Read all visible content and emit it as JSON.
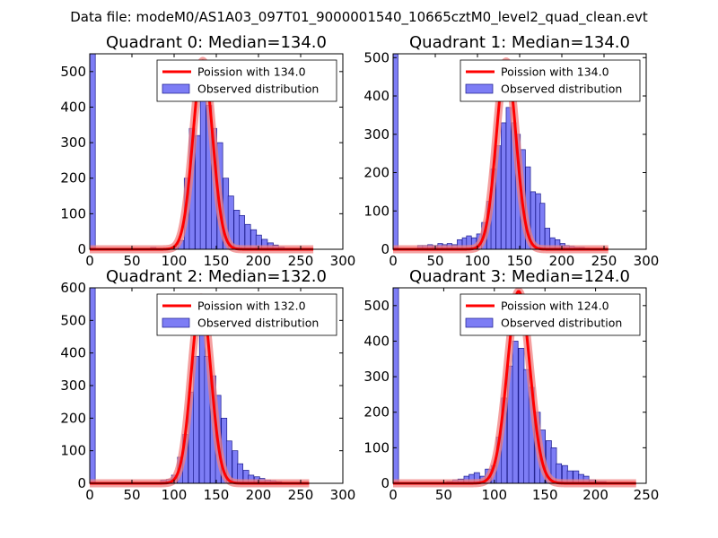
{
  "figure": {
    "suptitle": "Data file: modeM0/AS1A03_097T01_9000001540_10665cztM0_level2_quad_clean.evt",
    "colors": {
      "hist_fill": "#7d7df5",
      "hist_edge": "#1a1a8c",
      "poisson_line": "#ff0000",
      "poisson_glow": "#f08080"
    }
  },
  "chart_data": [
    {
      "type": "bar",
      "title": "Quadrant 0: Median=134.0",
      "xlim": [
        0,
        300
      ],
      "ylim": [
        0,
        550
      ],
      "xticks": [
        0,
        50,
        100,
        150,
        200,
        250,
        300
      ],
      "yticks": [
        0,
        100,
        200,
        300,
        400,
        500
      ],
      "bin_width": 6.6,
      "bins": [
        [
          0,
          550
        ],
        [
          72,
          5
        ],
        [
          99,
          7
        ],
        [
          105,
          25
        ],
        [
          112,
          200
        ],
        [
          118,
          340
        ],
        [
          125,
          320
        ],
        [
          131,
          440
        ],
        [
          138,
          405
        ],
        [
          144,
          340
        ],
        [
          151,
          300
        ],
        [
          158,
          200
        ],
        [
          164,
          150
        ],
        [
          171,
          110
        ],
        [
          177,
          95
        ],
        [
          184,
          70
        ],
        [
          191,
          55
        ],
        [
          197,
          40
        ],
        [
          204,
          28
        ],
        [
          211,
          18
        ],
        [
          217,
          12
        ],
        [
          224,
          6
        ],
        [
          231,
          3
        ],
        [
          237,
          3
        ],
        [
          244,
          2
        ]
      ],
      "poisson_peak": 530,
      "poisson_range": [
        0,
        265
      ],
      "legend": {
        "line": "Poission with 134.0",
        "patch": "Observed distribution",
        "loc": "upper right"
      }
    },
    {
      "type": "bar",
      "title": "Quadrant 1: Median=134.0",
      "xlim": [
        0,
        300
      ],
      "ylim": [
        0,
        510
      ],
      "xticks": [
        0,
        50,
        100,
        150,
        200,
        250,
        300
      ],
      "yticks": [
        0,
        100,
        200,
        300,
        400,
        500
      ],
      "bin_width": 5.8,
      "bins": [
        [
          0,
          510
        ],
        [
          29,
          10
        ],
        [
          35,
          10
        ],
        [
          41,
          12
        ],
        [
          47,
          10
        ],
        [
          53,
          15
        ],
        [
          58,
          12
        ],
        [
          64,
          15
        ],
        [
          70,
          12
        ],
        [
          76,
          25
        ],
        [
          82,
          30
        ],
        [
          87,
          35
        ],
        [
          93,
          30
        ],
        [
          99,
          40
        ],
        [
          105,
          70
        ],
        [
          111,
          125
        ],
        [
          116,
          210
        ],
        [
          122,
          270
        ],
        [
          128,
          330
        ],
        [
          134,
          370
        ],
        [
          140,
          330
        ],
        [
          145,
          300
        ],
        [
          151,
          260
        ],
        [
          157,
          215
        ],
        [
          163,
          150
        ],
        [
          169,
          145
        ],
        [
          174,
          120
        ],
        [
          180,
          55
        ],
        [
          186,
          30
        ],
        [
          192,
          25
        ],
        [
          198,
          15
        ],
        [
          203,
          10
        ],
        [
          209,
          8
        ],
        [
          215,
          5
        ],
        [
          221,
          5
        ],
        [
          227,
          3
        ]
      ],
      "poisson_peak": 490,
      "poisson_range": [
        0,
        255
      ],
      "legend": {
        "line": "Poission with 134.0",
        "patch": "Observed distribution",
        "loc": "upper right"
      }
    },
    {
      "type": "bar",
      "title": "Quadrant 2: Median=132.0",
      "xlim": [
        0,
        300
      ],
      "ylim": [
        0,
        600
      ],
      "xticks": [
        0,
        50,
        100,
        150,
        200,
        250,
        300
      ],
      "yticks": [
        0,
        100,
        200,
        300,
        400,
        500,
        600
      ],
      "bin_width": 6.5,
      "bins": [
        [
          0,
          600
        ],
        [
          84,
          10
        ],
        [
          91,
          12
        ],
        [
          97,
          25
        ],
        [
          104,
          80
        ],
        [
          110,
          150
        ],
        [
          117,
          280
        ],
        [
          123,
          390
        ],
        [
          130,
          460
        ],
        [
          136,
          390
        ],
        [
          143,
          330
        ],
        [
          149,
          270
        ],
        [
          156,
          200
        ],
        [
          162,
          130
        ],
        [
          169,
          100
        ],
        [
          175,
          60
        ],
        [
          182,
          40
        ],
        [
          188,
          25
        ],
        [
          195,
          20
        ],
        [
          201,
          15
        ],
        [
          208,
          10
        ],
        [
          214,
          8
        ],
        [
          221,
          5
        ]
      ],
      "poisson_peak": 570,
      "poisson_range": [
        0,
        260
      ],
      "legend": {
        "line": "Poission with 132.0",
        "patch": "Observed distribution",
        "loc": "upper right"
      }
    },
    {
      "type": "bar",
      "title": "Quadrant 3: Median=124.0",
      "xlim": [
        0,
        250
      ],
      "ylim": [
        0,
        550
      ],
      "xticks": [
        0,
        50,
        100,
        150,
        200,
        250
      ],
      "yticks": [
        0,
        100,
        200,
        300,
        400,
        500
      ],
      "bin_width": 5.4,
      "bins": [
        [
          0,
          550
        ],
        [
          53,
          5
        ],
        [
          59,
          10
        ],
        [
          64,
          12
        ],
        [
          70,
          20
        ],
        [
          75,
          25
        ],
        [
          80,
          30
        ],
        [
          86,
          20
        ],
        [
          91,
          40
        ],
        [
          97,
          50
        ],
        [
          102,
          130
        ],
        [
          107,
          240
        ],
        [
          113,
          330
        ],
        [
          118,
          400
        ],
        [
          124,
          380
        ],
        [
          129,
          320
        ],
        [
          134,
          270
        ],
        [
          140,
          200
        ],
        [
          145,
          150
        ],
        [
          151,
          120
        ],
        [
          156,
          100
        ],
        [
          161,
          55
        ],
        [
          167,
          50
        ],
        [
          172,
          35
        ],
        [
          178,
          35
        ],
        [
          183,
          25
        ],
        [
          188,
          20
        ],
        [
          194,
          10
        ],
        [
          199,
          5
        ],
        [
          205,
          5
        ]
      ],
      "poisson_peak": 540,
      "poisson_range": [
        0,
        240
      ],
      "legend": {
        "line": "Poission with 124.0",
        "patch": "Observed distribution",
        "loc": "upper right"
      }
    }
  ]
}
